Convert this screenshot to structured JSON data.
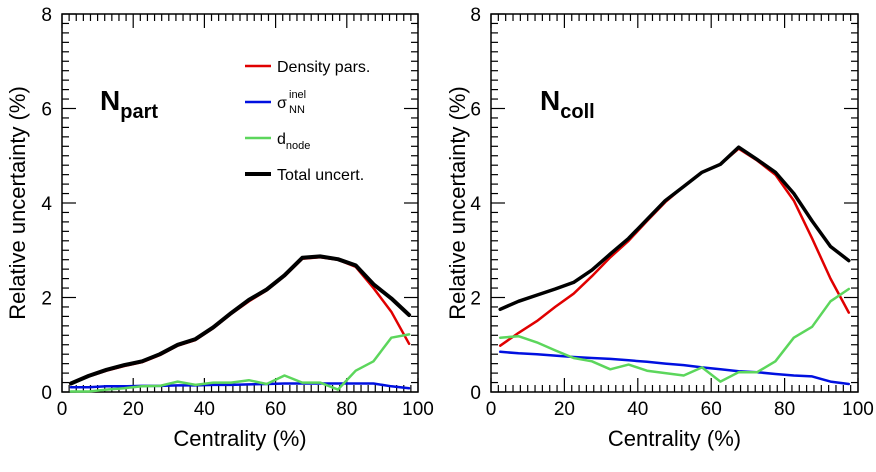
{
  "chart_data": [
    {
      "type": "line",
      "panel_label": "N",
      "panel_label_sub": "part",
      "xlabel": "Centrality (%)",
      "ylabel": "Relative uncertainty (%)",
      "xlim": [
        0,
        100
      ],
      "ylim": [
        0,
        8
      ],
      "xticks": [
        "0",
        "20",
        "40",
        "60",
        "80",
        "100"
      ],
      "yticks": [
        "0",
        "2",
        "4",
        "6",
        "8"
      ],
      "legend": {
        "placement": "top-right",
        "entries": [
          {
            "series": 0,
            "text": "Density pars.",
            "sup": "",
            "sub": ""
          },
          {
            "series": 1,
            "text": "σ",
            "sup": "inel",
            "sub": "NN"
          },
          {
            "series": 2,
            "text": "d",
            "sup": "",
            "sub": "node"
          },
          {
            "series": 3,
            "text": "Total uncert.",
            "sup": "",
            "sub": ""
          }
        ]
      },
      "x": [
        2.5,
        7.5,
        12.5,
        17.5,
        22.5,
        27.5,
        32.5,
        37.5,
        42.5,
        47.5,
        52.5,
        57.5,
        62.5,
        67.5,
        72.5,
        77.5,
        82.5,
        87.5,
        92.5,
        97.5
      ],
      "series": [
        {
          "color": "#e00000",
          "width": 2.5,
          "values": [
            0.18,
            0.33,
            0.45,
            0.55,
            0.63,
            0.78,
            0.98,
            1.1,
            1.35,
            1.65,
            1.92,
            2.15,
            2.45,
            2.82,
            2.85,
            2.8,
            2.65,
            2.2,
            1.7,
            1.02
          ]
        },
        {
          "color": "#0010e0",
          "width": 2.5,
          "values": [
            0.1,
            0.1,
            0.12,
            0.12,
            0.13,
            0.13,
            0.14,
            0.14,
            0.15,
            0.15,
            0.16,
            0.17,
            0.18,
            0.18,
            0.18,
            0.18,
            0.18,
            0.18,
            0.12,
            0.08
          ]
        },
        {
          "color": "#5cd65c",
          "width": 2.5,
          "values": [
            0.01,
            0.01,
            0.05,
            0.08,
            0.12,
            0.13,
            0.22,
            0.15,
            0.2,
            0.2,
            0.25,
            0.17,
            0.35,
            0.2,
            0.2,
            0.05,
            0.45,
            0.65,
            1.15,
            1.22
          ]
        },
        {
          "color": "#000000",
          "width": 4,
          "values": [
            0.18,
            0.34,
            0.47,
            0.57,
            0.65,
            0.8,
            1.0,
            1.12,
            1.37,
            1.67,
            1.95,
            2.17,
            2.47,
            2.84,
            2.87,
            2.81,
            2.68,
            2.28,
            1.98,
            1.63
          ]
        }
      ]
    },
    {
      "type": "line",
      "panel_label": "N",
      "panel_label_sub": "coll",
      "xlabel": "Centrality (%)",
      "ylabel": "Relative uncertainty (%)",
      "xlim": [
        0,
        100
      ],
      "ylim": [
        0,
        8
      ],
      "xticks": [
        "0",
        "20",
        "40",
        "60",
        "80",
        "100"
      ],
      "yticks": [
        "0",
        "2",
        "4",
        "6",
        "8"
      ],
      "legend": null,
      "x": [
        2.5,
        7.5,
        12.5,
        17.5,
        22.5,
        27.5,
        32.5,
        37.5,
        42.5,
        47.5,
        52.5,
        57.5,
        62.5,
        67.5,
        72.5,
        77.5,
        82.5,
        87.5,
        92.5,
        97.5
      ],
      "series": [
        {
          "color": "#e00000",
          "width": 2.5,
          "values": [
            0.98,
            1.25,
            1.5,
            1.8,
            2.08,
            2.45,
            2.85,
            3.2,
            3.62,
            4.02,
            4.35,
            4.65,
            4.82,
            5.15,
            4.9,
            4.6,
            4.05,
            3.25,
            2.4,
            1.68
          ]
        },
        {
          "color": "#0010e0",
          "width": 2.5,
          "values": [
            0.85,
            0.82,
            0.8,
            0.77,
            0.74,
            0.72,
            0.7,
            0.67,
            0.64,
            0.6,
            0.57,
            0.52,
            0.48,
            0.44,
            0.42,
            0.38,
            0.35,
            0.33,
            0.22,
            0.17
          ]
        },
        {
          "color": "#5cd65c",
          "width": 2.5,
          "values": [
            1.15,
            1.18,
            1.05,
            0.88,
            0.72,
            0.65,
            0.48,
            0.58,
            0.45,
            0.4,
            0.35,
            0.52,
            0.22,
            0.42,
            0.42,
            0.65,
            1.15,
            1.38,
            1.92,
            2.18
          ]
        },
        {
          "color": "#000000",
          "width": 3.5,
          "values": [
            1.75,
            1.92,
            2.05,
            2.18,
            2.32,
            2.58,
            2.92,
            3.25,
            3.65,
            4.05,
            4.35,
            4.65,
            4.82,
            5.18,
            4.92,
            4.65,
            4.2,
            3.62,
            3.08,
            2.78
          ]
        }
      ]
    }
  ]
}
